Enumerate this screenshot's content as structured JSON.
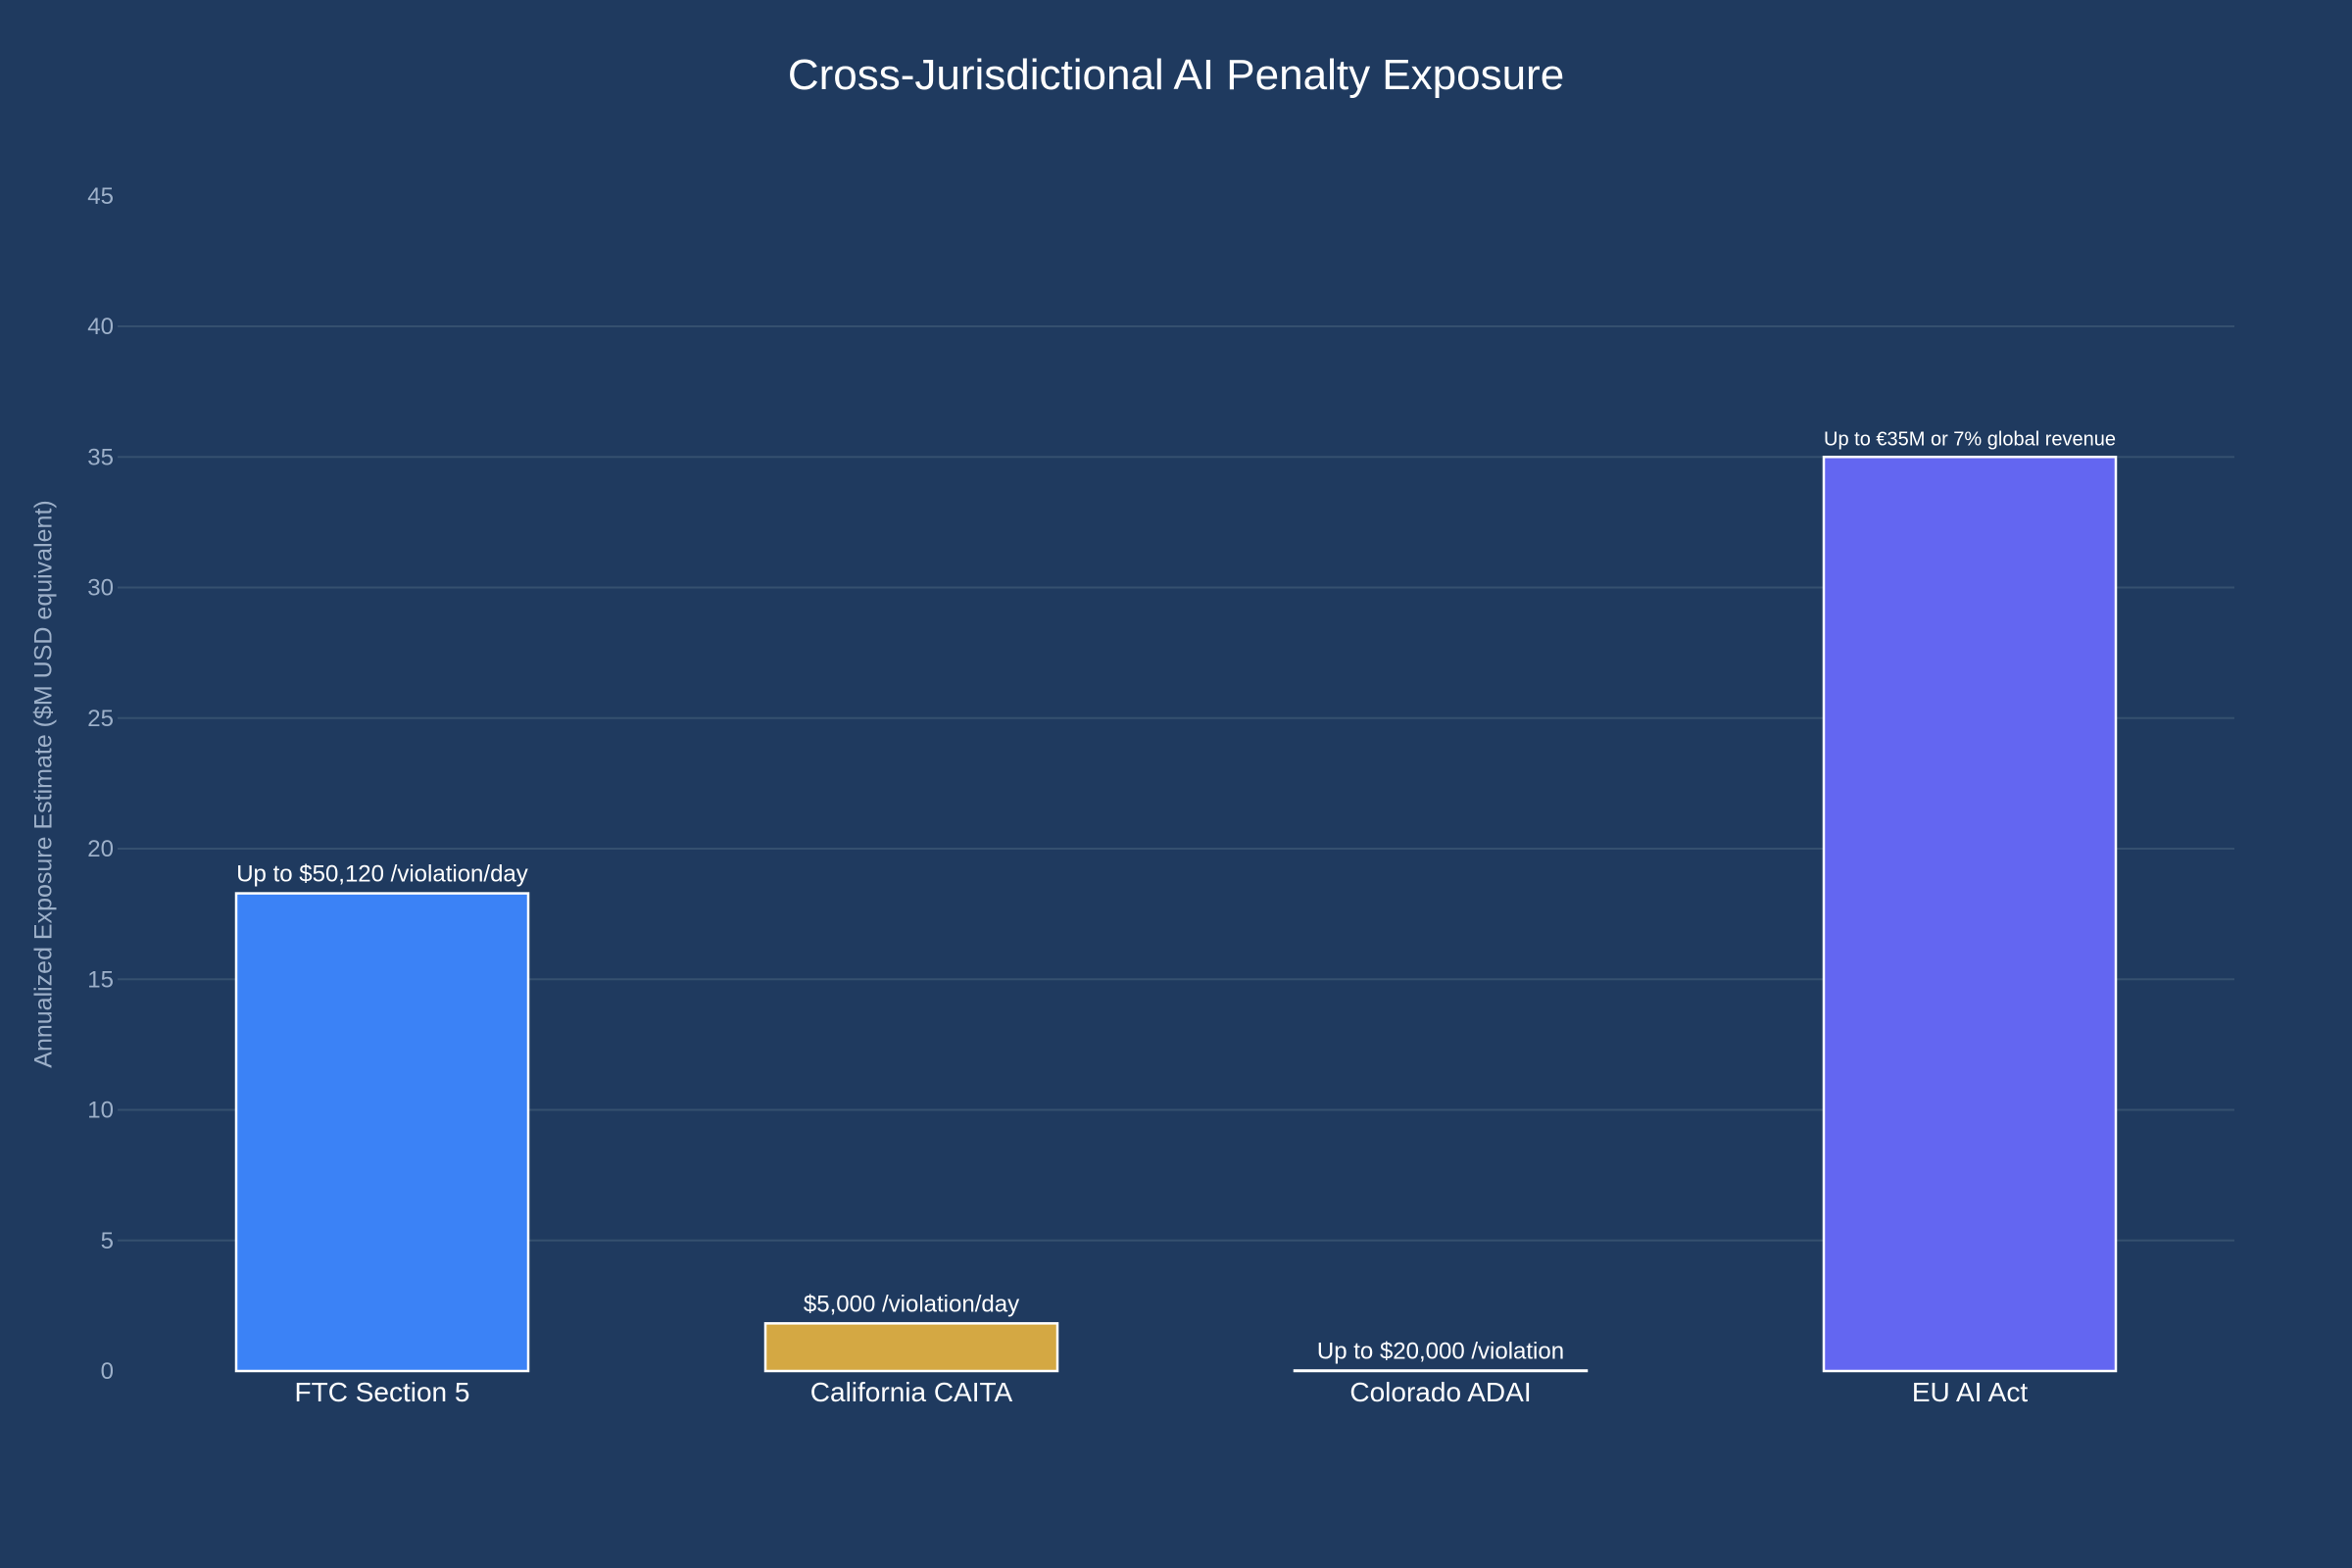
{
  "chart_data": {
    "type": "bar",
    "title": "Cross-Jurisdictional AI Penalty Exposure",
    "xlabel": "",
    "ylabel": "Annualized Exposure Estimate ($M USD equivalent)",
    "ylim": [
      0,
      45
    ],
    "yticks": [
      0,
      5,
      10,
      15,
      20,
      25,
      30,
      35,
      40,
      45
    ],
    "grid": true,
    "legend": "none",
    "categories": [
      "FTC Section 5",
      "California CAITA",
      "Colorado ADAI",
      "EU AI Act"
    ],
    "values": [
      18.29,
      1.825,
      0.02,
      35
    ],
    "annotations": [
      "Up to $50,120 /violation/day",
      "$5,000 /violation/day",
      "Up to $20,000 /violation",
      "Up to €35M or 7% global revenue"
    ],
    "colors": [
      "#3b82f6",
      "#d4a843",
      "#1f3a5f",
      "#6366f1"
    ]
  },
  "colors": {
    "background": "#1f3a5f",
    "gridline": "#35506f",
    "tick_text": "#9db0c9",
    "bar_outline": "#ffffff"
  }
}
